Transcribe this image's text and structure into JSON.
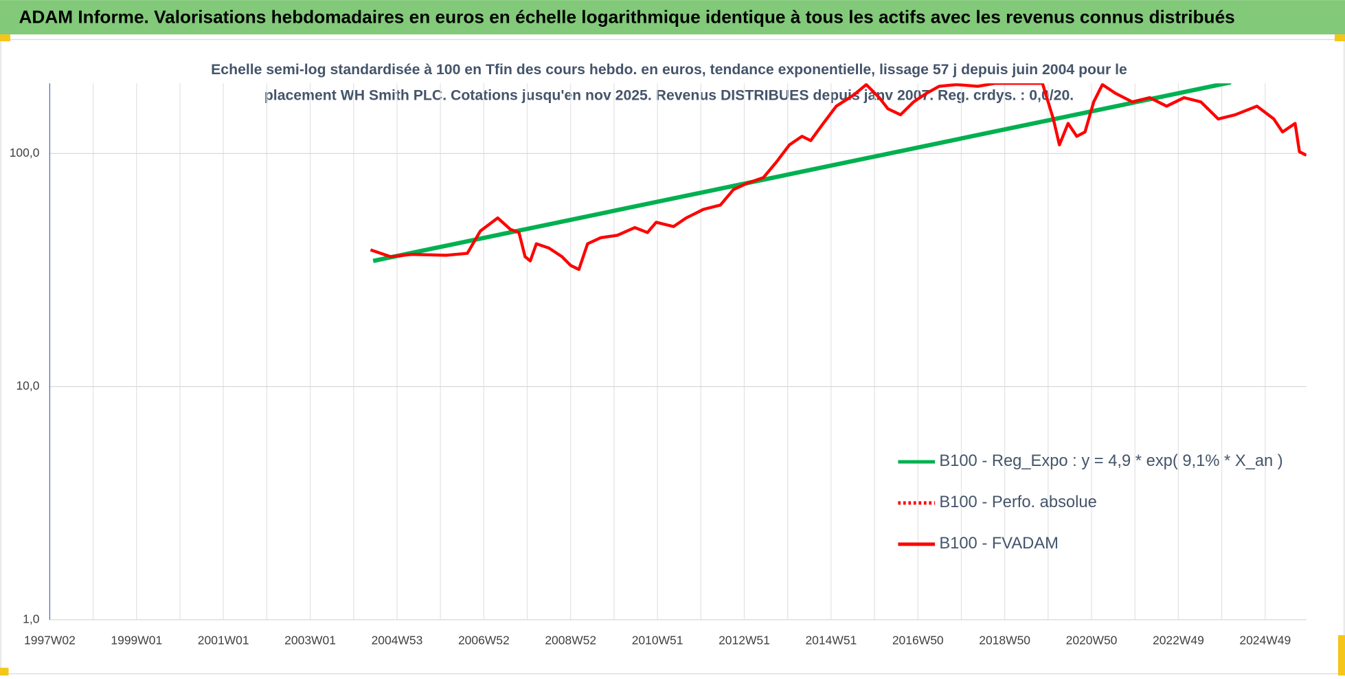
{
  "chart_data": {
    "type": "line",
    "title": "ADAM Informe. Valorisations hebdomadaires en euros en échelle logarithmique identique à tous les actifs avec les revenus connus distribués",
    "subtitle": [
      "Echelle semi-log standardisée à 100 en Tfin des cours hebdo. en euros, tendance exponentielle, lissage 57 j depuis juin 2004 pour le",
      "placement WH Smith PLC. Cotations jusqu'en nov 2025. Revenus DISTRIBUES depuis janv 2007. Reg. crdys. : 0,0/20."
    ],
    "log_y": true,
    "grid": true,
    "legend_position": "right",
    "xlim": [
      1997.0,
      2025.95
    ],
    "xticks": [
      {
        "value": 1997.0,
        "label": "1997W02"
      },
      {
        "value": 1999.0,
        "label": "1999W01"
      },
      {
        "value": 2001.0,
        "label": "2001W01"
      },
      {
        "value": 2003.0,
        "label": "2003W01"
      },
      {
        "value": 2005.0,
        "label": "2004W53"
      },
      {
        "value": 2007.0,
        "label": "2006W52"
      },
      {
        "value": 2009.0,
        "label": "2008W52"
      },
      {
        "value": 2011.0,
        "label": "2010W51"
      },
      {
        "value": 2013.0,
        "label": "2012W51"
      },
      {
        "value": 2015.0,
        "label": "2014W51"
      },
      {
        "value": 2017.0,
        "label": "2016W50"
      },
      {
        "value": 2019.0,
        "label": "2018W50"
      },
      {
        "value": 2021.0,
        "label": "2020W50"
      },
      {
        "value": 2023.0,
        "label": "2022W49"
      },
      {
        "value": 2025.0,
        "label": "2024W49"
      }
    ],
    "ylim": [
      1,
      200
    ],
    "yticks": [
      {
        "value": 1,
        "label": "1,0"
      },
      {
        "value": 10,
        "label": "10,0"
      },
      {
        "value": 100,
        "label": "100,0"
      }
    ],
    "series": [
      {
        "name": "B100 - Reg_Expo : y = 4,9 * exp( 9,1% *  X_an )",
        "color": "#00b050",
        "style": "solid",
        "x": [
          2004.45,
          2024.21
        ],
        "values": [
          34.6,
          202
        ]
      },
      {
        "name": "B100 - Perfo. absolue",
        "color": "#ff0000",
        "style": "dotted",
        "x": [],
        "values": []
      },
      {
        "name": "B100 - FVADAM",
        "color": "#ff0000",
        "style": "solid",
        "x": [
          2004.39,
          2004.85,
          2005.34,
          2006.13,
          2006.62,
          2006.92,
          2007.32,
          2007.61,
          2007.81,
          2007.95,
          2008.07,
          2008.21,
          2008.5,
          2008.8,
          2009.0,
          2009.19,
          2009.39,
          2009.69,
          2010.08,
          2010.48,
          2010.77,
          2010.97,
          2011.37,
          2011.66,
          2012.06,
          2012.45,
          2012.75,
          2013.05,
          2013.44,
          2013.74,
          2014.04,
          2014.33,
          2014.53,
          2014.82,
          2015.12,
          2015.52,
          2015.81,
          2016.11,
          2016.31,
          2016.6,
          2016.9,
          2017.2,
          2017.49,
          2017.89,
          2018.38,
          2018.78,
          2019.37,
          2019.87,
          2020.12,
          2020.26,
          2020.46,
          2020.66,
          2020.85,
          2021.05,
          2021.25,
          2021.55,
          2021.94,
          2022.34,
          2022.73,
          2023.13,
          2023.52,
          2023.92,
          2024.31,
          2024.81,
          2025.2,
          2025.4,
          2025.69,
          2025.79,
          2025.95
        ],
        "values": [
          38.6,
          36.1,
          36.9,
          36.6,
          37.3,
          46.5,
          52.9,
          47.3,
          45.8,
          36.1,
          34.6,
          41.0,
          39.3,
          36.1,
          33.1,
          31.8,
          41.0,
          43.5,
          44.6,
          48.1,
          45.8,
          50.7,
          48.6,
          52.9,
          57.6,
          60.1,
          70.0,
          74.3,
          78.8,
          91.9,
          108.9,
          118.5,
          113.6,
          134.6,
          159.6,
          178.2,
          197.5,
          173.6,
          155.5,
          146.6,
          166.5,
          181.3,
          194.2,
          197.5,
          194.2,
          200,
          200,
          200,
          140.6,
          108.9,
          134.6,
          118.5,
          123.7,
          166.5,
          197.5,
          181.3,
          166.5,
          173.6,
          159.6,
          173.6,
          166.5,
          140.6,
          146.6,
          159.6,
          140.6,
          123.7,
          134.6,
          101.7,
          98.3
        ]
      }
    ]
  }
}
